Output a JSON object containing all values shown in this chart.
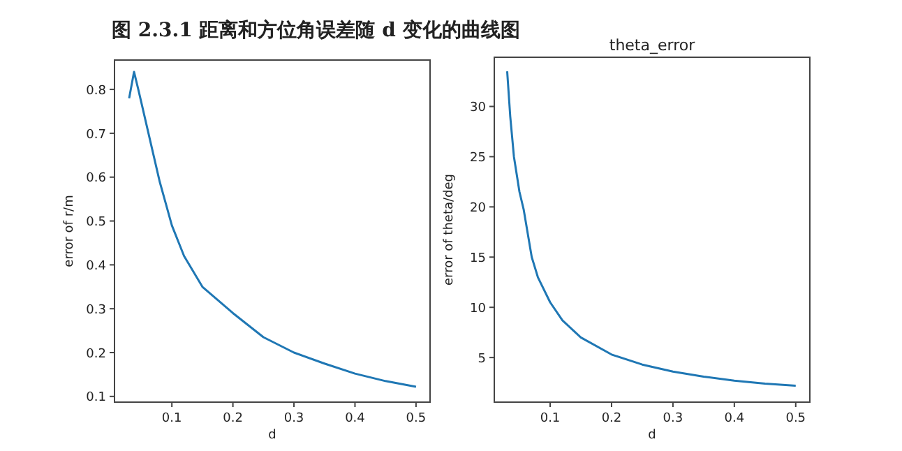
{
  "chart_data": [
    {
      "type": "line",
      "title": "图 2.3.1 距离和方位角误差随 d 变化的曲线图",
      "xlabel": "d",
      "ylabel": "error of r/m",
      "xlim": [
        0.006,
        0.523
      ],
      "ylim": [
        0.087,
        0.867
      ],
      "xticks": [
        0.1,
        0.2,
        0.3,
        0.4,
        0.5
      ],
      "yticks": [
        0.1,
        0.2,
        0.3,
        0.4,
        0.5,
        0.6,
        0.7,
        0.8
      ],
      "grid": false,
      "series": [
        {
          "color": "#1f77b4",
          "x": [
            0.03,
            0.038,
            0.045,
            0.05,
            0.06,
            0.07,
            0.08,
            0.09,
            0.1,
            0.12,
            0.15,
            0.2,
            0.25,
            0.3,
            0.35,
            0.4,
            0.45,
            0.5
          ],
          "values": [
            0.78,
            0.84,
            0.8,
            0.77,
            0.71,
            0.65,
            0.59,
            0.54,
            0.49,
            0.42,
            0.35,
            0.29,
            0.235,
            0.2,
            0.175,
            0.152,
            0.135,
            0.122
          ]
        }
      ]
    },
    {
      "type": "line",
      "title": "theta_error",
      "xlabel": "d",
      "ylabel": "error of theta/deg",
      "xlim": [
        0.009,
        0.523
      ],
      "ylim": [
        0.56,
        34.9
      ],
      "xticks": [
        0.1,
        0.2,
        0.3,
        0.4,
        0.5
      ],
      "yticks": [
        5,
        10,
        15,
        20,
        25,
        30
      ],
      "grid": false,
      "series": [
        {
          "color": "#1f77b4",
          "x": [
            0.03,
            0.035,
            0.041,
            0.05,
            0.057,
            0.07,
            0.08,
            0.1,
            0.12,
            0.15,
            0.2,
            0.25,
            0.3,
            0.35,
            0.4,
            0.45,
            0.5
          ],
          "values": [
            33.5,
            29,
            25,
            21.5,
            19.7,
            15,
            13,
            10.5,
            8.7,
            7,
            5.3,
            4.3,
            3.6,
            3.1,
            2.7,
            2.4,
            2.2
          ]
        }
      ]
    }
  ]
}
